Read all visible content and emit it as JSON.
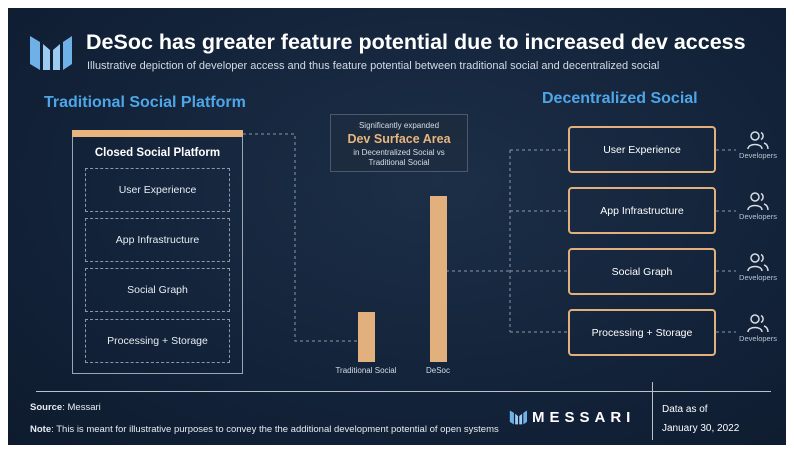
{
  "header": {
    "title": "DeSoc has greater feature potential due to increased dev access",
    "subtitle": "Illustrative depiction of developer access and thus feature potential between traditional social and decentralized social"
  },
  "left": {
    "heading": "Traditional Social Platform",
    "platform_title": "Closed Social Platform",
    "layers": [
      "User Experience",
      "App Infrastructure",
      "Social Graph",
      "Processing + Storage"
    ]
  },
  "center": {
    "callout_top": "Significantly expanded",
    "callout_main": "Dev Surface Area",
    "callout_line1": "in Decentralized Social vs",
    "callout_line2": "Traditional Social"
  },
  "chart_data": {
    "type": "bar",
    "categories": [
      "Traditional Social",
      "DeSoc"
    ],
    "values": [
      1,
      3.3
    ],
    "title": "",
    "xlabel": "",
    "ylabel": ""
  },
  "right": {
    "heading": "Decentralized Social",
    "layers": [
      "User Experience",
      "App Infrastructure",
      "Social Graph",
      "Processing + Storage"
    ],
    "dev_label": "Developers"
  },
  "footer": {
    "source_label": "Source",
    "source_value": ": Messari",
    "note_label": "Note",
    "note_value": ": This is meant for illustrative purposes to convey the the additional development potential of open systems",
    "brand": "MESSARI",
    "data_as_of": "Data as of",
    "date": "January 30, 2022"
  },
  "colors": {
    "background": "#13233a",
    "accent_blue": "#4ea6e8",
    "accent_gold": "#e2b07c",
    "text": "#ffffff"
  },
  "icons": [
    "messari-logo-icon",
    "developers-icon"
  ]
}
